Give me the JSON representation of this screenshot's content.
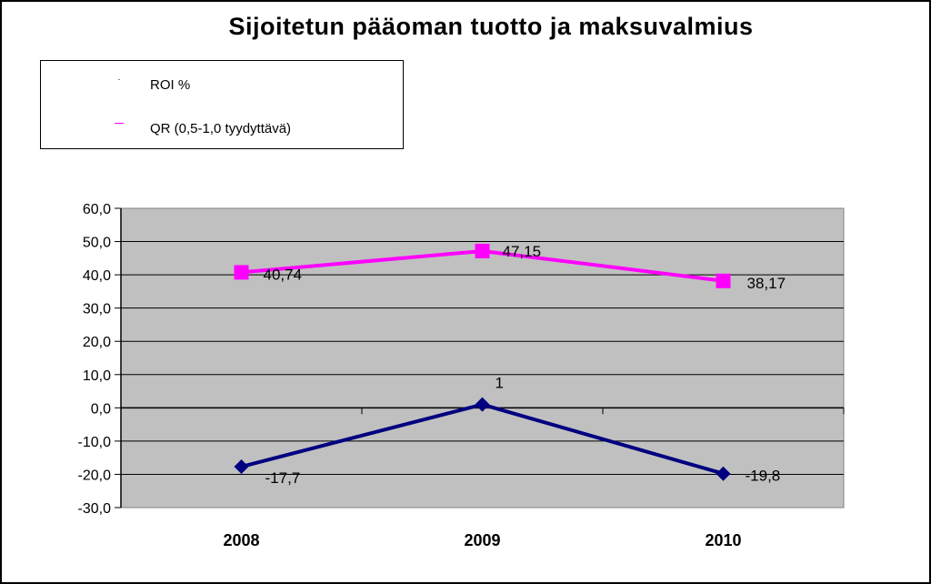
{
  "chart_data": {
    "type": "line",
    "title": "Sijoitetun pääoman tuotto ja maksuvalmius",
    "categories": [
      "2008",
      "2009",
      "2010"
    ],
    "y_ticks": [
      "60,0",
      "50,0",
      "40,0",
      "30,0",
      "20,0",
      "10,0",
      "0,0",
      "-10,0",
      "-20,0",
      "-30,0"
    ],
    "ylim": [
      -30,
      60
    ],
    "grid": true,
    "legend_position": "top-left",
    "series": [
      {
        "name": "ROI %",
        "values": [
          -17.7,
          1,
          -19.8
        ],
        "labels": [
          "-17,7",
          "1",
          "-19,8"
        ],
        "color": "#000080",
        "marker": "diamond"
      },
      {
        "name": "QR (0,5-1,0 tyydyttävä)",
        "values": [
          40.74,
          47.15,
          38.17
        ],
        "labels": [
          "40,74",
          "47,15",
          "38,17"
        ],
        "color": "#ff00ff",
        "marker": "square"
      }
    ],
    "plot_background": "#c0c0c0"
  }
}
